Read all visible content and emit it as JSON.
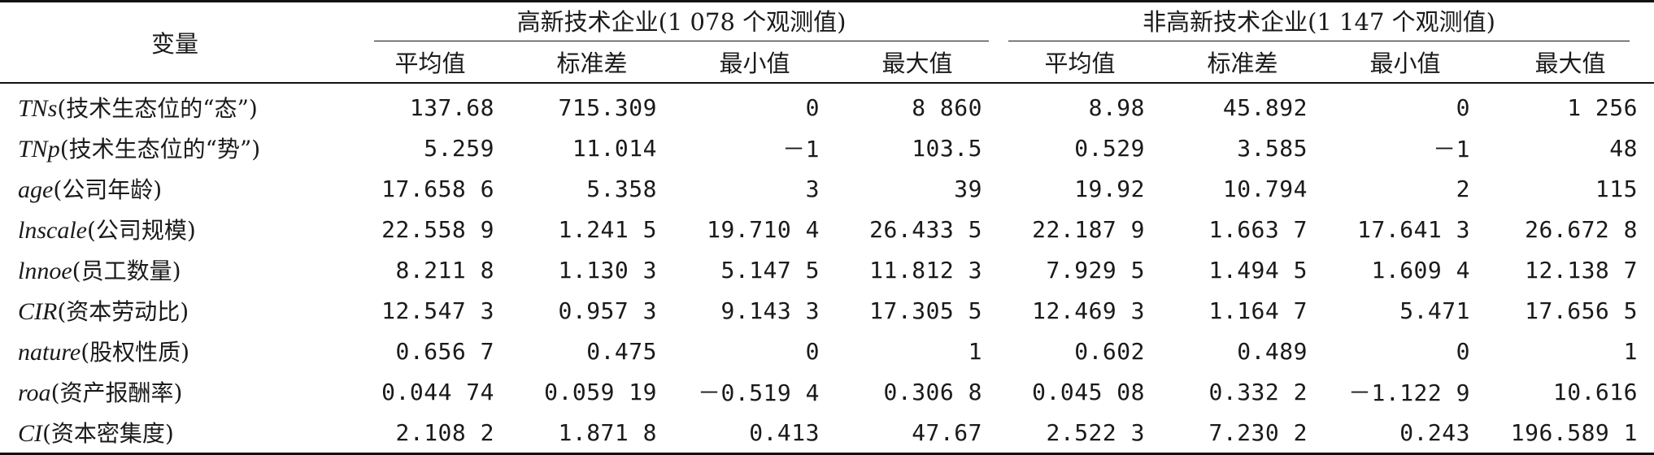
{
  "table": {
    "var_header": "变量",
    "groups": [
      {
        "title": "高新技术企业(1 078 个观测值)",
        "columns": [
          "平均值",
          "标准差",
          "最小值",
          "最大值"
        ]
      },
      {
        "title": "非高新技术企业(1 147 个观测值)",
        "columns": [
          "平均值",
          "标准差",
          "最小值",
          "最大值"
        ]
      }
    ],
    "rows": [
      {
        "code": "TNs",
        "desc": "(技术生态位的“态”)",
        "values": [
          "137.68",
          "715.309",
          "0",
          "8 860",
          "8.98",
          "45.892",
          "0",
          "1 256"
        ]
      },
      {
        "code": "TNp",
        "desc": "(技术生态位的“势”)",
        "values": [
          "5.259",
          "11.014",
          "－1",
          "103.5",
          "0.529",
          "3.585",
          "－1",
          "48"
        ]
      },
      {
        "code": "age",
        "desc": "(公司年龄)",
        "values": [
          "17.658 6",
          "5.358",
          "3",
          "39",
          "19.92",
          "10.794",
          "2",
          "115"
        ]
      },
      {
        "code": "lnscale",
        "desc": "(公司规模)",
        "values": [
          "22.558 9",
          "1.241 5",
          "19.710 4",
          "26.433 5",
          "22.187 9",
          "1.663 7",
          "17.641 3",
          "26.672 8"
        ]
      },
      {
        "code": "lnnoe",
        "desc": "(员工数量)",
        "values": [
          "8.211 8",
          "1.130 3",
          "5.147 5",
          "11.812 3",
          "7.929 5",
          "1.494 5",
          "1.609 4",
          "12.138 7"
        ]
      },
      {
        "code": "CIR",
        "desc": "(资本劳动比)",
        "values": [
          "12.547 3",
          "0.957 3",
          "9.143 3",
          "17.305 5",
          "12.469 3",
          "1.164 7",
          "5.471",
          "17.656 5"
        ]
      },
      {
        "code": "nature",
        "desc": "(股权性质)",
        "values": [
          "0.656 7",
          "0.475",
          "0",
          "1",
          "0.602",
          "0.489",
          "0",
          "1"
        ]
      },
      {
        "code": "roa",
        "desc": "(资产报酬率)",
        "values": [
          "0.044 74",
          "0.059 19",
          "－0.519 4",
          "0.306 8",
          "0.045 08",
          "0.332 2",
          "－1.122 9",
          "10.616"
        ]
      },
      {
        "code": "CI",
        "desc": "(资本密集度)",
        "values": [
          "2.108 2",
          "1.871 8",
          "0.413",
          "47.67",
          "2.522 3",
          "7.230 2",
          "0.243",
          "196.589 1"
        ]
      }
    ]
  }
}
